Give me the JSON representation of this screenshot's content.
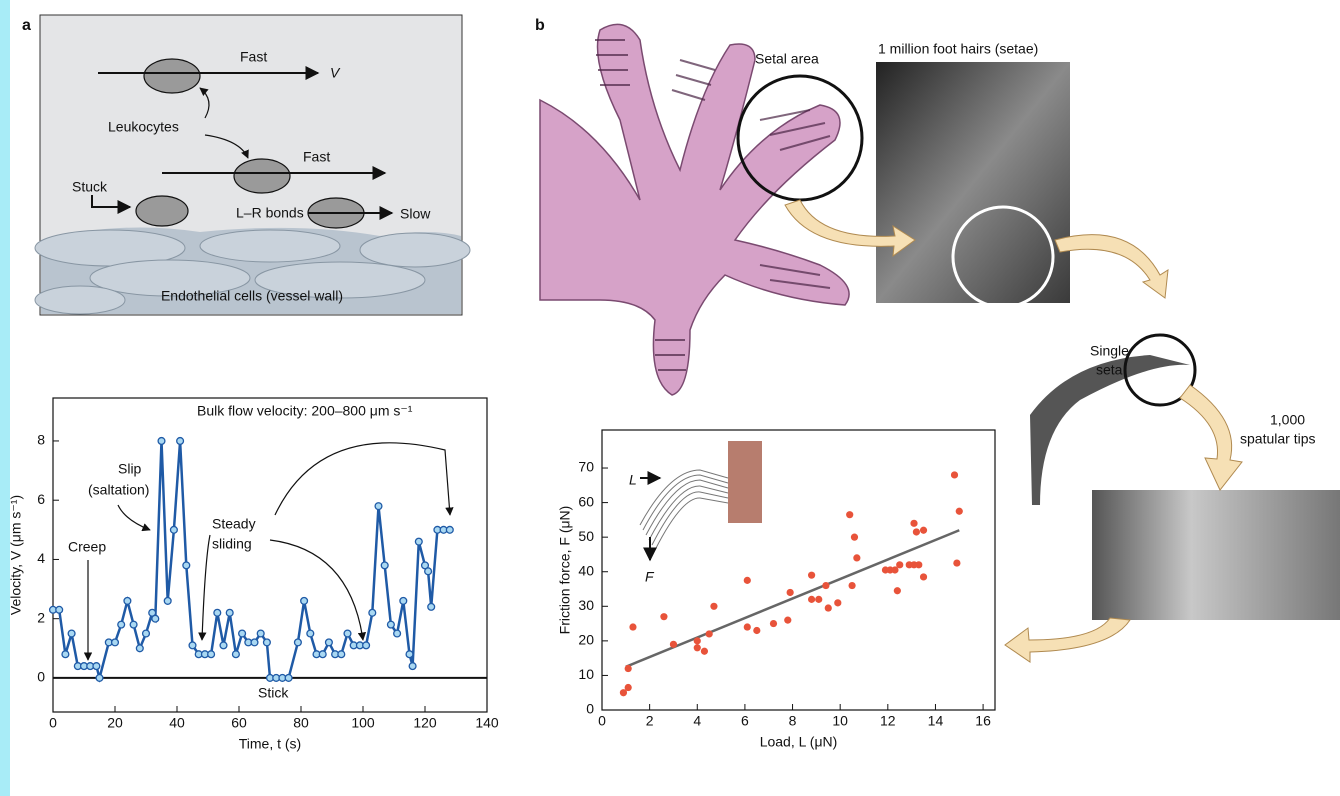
{
  "panel_labels": [
    "a",
    "b"
  ],
  "diagram": {
    "labels": [
      "Fast",
      "V",
      "Leukocytes",
      "Fast",
      "Stuck",
      "L–R bonds",
      "Slow",
      "Endothelial cells (vessel wall)"
    ]
  },
  "photos": {
    "labels": [
      "Setal area",
      "1 million foot hairs (setae)",
      "Single",
      "seta",
      "1,000",
      "spatular tips"
    ]
  },
  "chart_data": [
    {
      "type": "line",
      "x_label": "Time, t (s)",
      "y_label": "Velocity, V (μm s⁻¹)",
      "annotations": [
        "Bulk flow velocity: 200–800 μm s⁻¹",
        "Slip",
        "(saltation)",
        "Steady",
        "sliding",
        "Creep",
        "Stick"
      ],
      "xlim": [
        0,
        140
      ],
      "ylim": [
        -1.15,
        9.45
      ],
      "xticks": [
        0,
        20,
        40,
        60,
        80,
        100,
        120,
        140
      ],
      "yticks": [
        0,
        2,
        4,
        6,
        8
      ],
      "series": [
        {
          "color": "#1f5aa6",
          "x": [
            0,
            2,
            4,
            6,
            8,
            10,
            12,
            14,
            15,
            18,
            20,
            22,
            24,
            26,
            28,
            30,
            32,
            33,
            35,
            37,
            39,
            41,
            43,
            45,
            47,
            49,
            51,
            53,
            55,
            57,
            59,
            61,
            63,
            65,
            67,
            69,
            70,
            72,
            74,
            76,
            79,
            81,
            83,
            85,
            87,
            89,
            91,
            93,
            95,
            97,
            99,
            101,
            103,
            105,
            107,
            109,
            111,
            113,
            115,
            116,
            118,
            120,
            121,
            122,
            124,
            126,
            128
          ],
          "values": [
            2.3,
            2.3,
            0.8,
            1.5,
            0.4,
            0.4,
            0.4,
            0.4,
            0,
            1.2,
            1.2,
            1.8,
            2.6,
            1.8,
            1.0,
            1.5,
            2.2,
            2.0,
            8.0,
            2.6,
            5.0,
            8.0,
            3.8,
            1.1,
            0.8,
            0.8,
            0.8,
            2.2,
            1.1,
            2.2,
            0.8,
            1.5,
            1.2,
            1.2,
            1.5,
            1.2,
            0,
            0,
            0,
            0,
            1.2,
            2.6,
            1.5,
            0.8,
            0.8,
            1.2,
            0.8,
            0.8,
            1.5,
            1.1,
            1.1,
            1.1,
            2.2,
            5.8,
            3.8,
            1.8,
            1.5,
            2.6,
            0.8,
            0.4,
            4.6,
            3.8,
            3.6,
            2.4,
            5.0,
            5.0,
            5.0
          ]
        }
      ]
    },
    {
      "type": "scatter",
      "x_label": "Load, L (μN)",
      "y_label": "Friction force, F (μN)",
      "annotations": [
        "L",
        "F"
      ],
      "xlim": [
        0,
        16.5
      ],
      "ylim": [
        0,
        81
      ],
      "xticks": [
        0,
        2,
        4,
        6,
        8,
        10,
        12,
        14,
        16
      ],
      "yticks": [
        0,
        10,
        20,
        30,
        40,
        50,
        60,
        70
      ],
      "color": "#e8533a",
      "fit_color": "#666666",
      "x": [
        0.9,
        1.1,
        1.1,
        1.3,
        2.6,
        3,
        4,
        4,
        4.3,
        4.5,
        4.7,
        6.1,
        6.1,
        6.5,
        7.2,
        7.8,
        7.9,
        8.8,
        8.8,
        9.1,
        9.4,
        9.5,
        9.9,
        10.4,
        10.5,
        10.6,
        10.7,
        11.9,
        12.1,
        12.3,
        12.4,
        12.5,
        12.9,
        13.1,
        13.1,
        13.2,
        13.3,
        13.5,
        13.5,
        14.8,
        14.9,
        15
      ],
      "values": [
        5,
        6.5,
        12,
        24,
        27,
        19,
        18,
        20,
        17,
        22,
        30,
        37.5,
        24,
        23,
        25,
        26,
        34,
        39,
        32,
        32,
        36,
        29.5,
        31,
        56.5,
        36,
        50,
        44,
        40.5,
        40.5,
        40.5,
        34.5,
        42,
        42,
        54,
        42,
        51.5,
        42,
        52,
        38.5,
        68,
        42.5,
        57.5
      ],
      "fit_line": {
        "x": [
          1,
          15
        ],
        "y": [
          12.5,
          52
        ]
      }
    }
  ]
}
